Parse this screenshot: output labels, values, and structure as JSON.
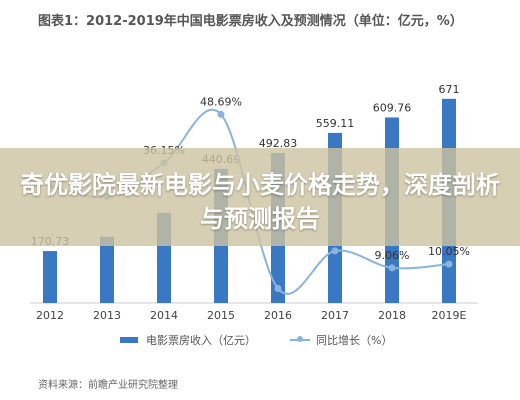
{
  "chart_data": {
    "type": "bar",
    "title": "图表1：2012-2019年中国电影票房收入及预测情况（单位：亿元，%）",
    "categories": [
      "2012",
      "2013",
      "2014",
      "2015",
      "2016",
      "2017",
      "2018",
      "2019E"
    ],
    "series": [
      {
        "name": "电影票房收入（亿元）",
        "type": "bar",
        "values": [
          170.73,
          217.69,
          296.39,
          440.69,
          492.83,
          559.11,
          609.76,
          671
        ],
        "labels": [
          "170.73",
          "",
          "",
          "440.69",
          "492.83",
          "559.11",
          "609.76",
          "671"
        ],
        "color": "#3a78c3"
      },
      {
        "name": "同比增长（%）",
        "type": "line",
        "values": [
          30.18,
          27.51,
          36.15,
          48.69,
          3.73,
          13.45,
          9.06,
          10.05
        ],
        "labels": [
          "",
          "",
          "36.15%",
          "48.69%",
          "",
          "",
          "9.06%",
          "10.05%"
        ],
        "color": "#8ab4dd"
      }
    ],
    "ylim": [
      0,
      700
    ],
    "y2lim": [
      0,
      55
    ],
    "grid": false,
    "legend_position": "bottom"
  },
  "overlay_text": "奇优影院最新电影与小麦价格走势，深度剖析与预测报告",
  "source_text": "资料来源：前瞻产业研究院整理"
}
